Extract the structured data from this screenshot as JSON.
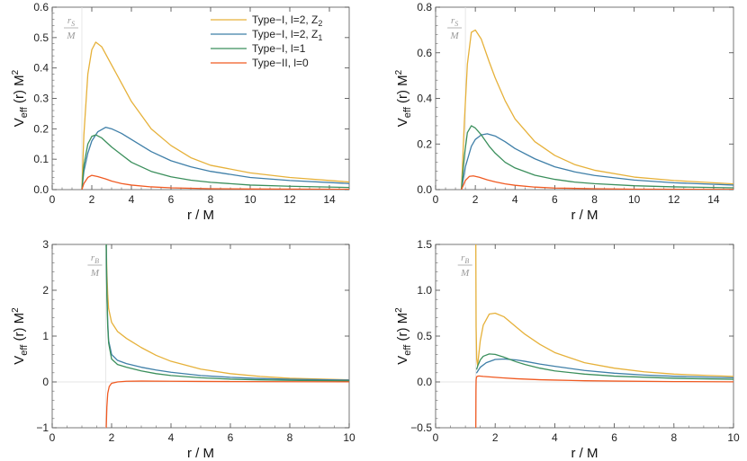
{
  "series_meta": [
    {
      "name": "Type−I, l=2, Z",
      "sub": "2",
      "color": "#e6b13a"
    },
    {
      "name": "Type−I, l=2, Z",
      "sub": "1",
      "color": "#3f7fa8"
    },
    {
      "name": "Type−I, l=1",
      "sub": "",
      "color": "#3b8f5c"
    },
    {
      "name": "Type−II, l=0",
      "sub": "",
      "color": "#f05a22"
    }
  ],
  "chart_data": [
    {
      "type": "line",
      "panel": "top-left",
      "xlabel": "r / M",
      "ylabel": {
        "main": "V",
        "sub": "eff",
        "rest": " (r) M",
        "sup": "2"
      },
      "xlim": [
        0,
        15
      ],
      "ylim": [
        0,
        0.6
      ],
      "xticks": [
        "0",
        "2",
        "4",
        "6",
        "8",
        "10",
        "12",
        "14"
      ],
      "xtick_values": [
        0,
        2,
        4,
        6,
        8,
        10,
        12,
        14
      ],
      "yticks": [
        "0.0",
        "0.1",
        "0.2",
        "0.3",
        "0.4",
        "0.5",
        "0.6"
      ],
      "ytick_values": [
        0,
        0.1,
        0.2,
        0.3,
        0.4,
        0.5,
        0.6
      ],
      "annotation": {
        "num": "r",
        "num_sub": "S",
        "den": "M",
        "x": 1.5
      },
      "legend": "top-right",
      "series": [
        {
          "name": "Type-I, l=2, Z2",
          "x": [
            1.5,
            1.6,
            1.8,
            2.0,
            2.2,
            2.5,
            3,
            3.5,
            4,
            5,
            6,
            7,
            8,
            10,
            12,
            15
          ],
          "y": [
            0,
            0.18,
            0.38,
            0.46,
            0.485,
            0.47,
            0.41,
            0.35,
            0.29,
            0.2,
            0.145,
            0.105,
            0.08,
            0.055,
            0.04,
            0.025
          ]
        },
        {
          "name": "Type-I, l=2, Z1",
          "x": [
            1.5,
            1.6,
            1.8,
            2.0,
            2.3,
            2.7,
            3,
            3.5,
            4,
            5,
            6,
            7,
            8,
            10,
            12,
            15
          ],
          "y": [
            0,
            0.06,
            0.12,
            0.16,
            0.19,
            0.205,
            0.2,
            0.185,
            0.165,
            0.125,
            0.095,
            0.075,
            0.06,
            0.04,
            0.03,
            0.02
          ]
        },
        {
          "name": "Type-I, l=1",
          "x": [
            1.5,
            1.6,
            1.8,
            2.0,
            2.2,
            2.5,
            3,
            3.5,
            4,
            5,
            6,
            7,
            8,
            10,
            12,
            15
          ],
          "y": [
            0,
            0.08,
            0.15,
            0.175,
            0.18,
            0.17,
            0.14,
            0.115,
            0.09,
            0.06,
            0.042,
            0.031,
            0.024,
            0.015,
            0.011,
            0.007
          ]
        },
        {
          "name": "Type-II, l=0",
          "x": [
            1.5,
            1.6,
            1.8,
            2.0,
            2.3,
            2.7,
            3,
            3.5,
            4,
            5,
            6,
            8,
            10,
            15
          ],
          "y": [
            0,
            0.02,
            0.04,
            0.047,
            0.043,
            0.035,
            0.028,
            0.02,
            0.015,
            0.009,
            0.006,
            0.003,
            0.002,
            0.001
          ]
        }
      ]
    },
    {
      "type": "line",
      "panel": "top-right",
      "xlabel": "r / M",
      "ylabel": {
        "main": "V",
        "sub": "eff",
        "rest": " (r) M",
        "sup": "2"
      },
      "xlim": [
        0,
        15
      ],
      "ylim": [
        0,
        0.8
      ],
      "xticks": [
        "0",
        "2",
        "4",
        "6",
        "8",
        "10",
        "12",
        "14"
      ],
      "xtick_values": [
        0,
        2,
        4,
        6,
        8,
        10,
        12,
        14
      ],
      "yticks": [
        "0.0",
        "0.2",
        "0.4",
        "0.6",
        "0.8"
      ],
      "ytick_values": [
        0,
        0.2,
        0.4,
        0.6,
        0.8
      ],
      "annotation": {
        "num": "r",
        "num_sub": "S",
        "den": "M",
        "x": 1.5
      },
      "series": [
        {
          "name": "Type-I, l=2, Z2",
          "x": [
            1.3,
            1.45,
            1.6,
            1.8,
            2.0,
            2.3,
            2.7,
            3,
            3.5,
            4,
            5,
            6,
            7,
            8,
            10,
            12,
            15
          ],
          "y": [
            0,
            0.3,
            0.55,
            0.69,
            0.7,
            0.66,
            0.56,
            0.49,
            0.39,
            0.31,
            0.21,
            0.15,
            0.11,
            0.085,
            0.055,
            0.04,
            0.025
          ]
        },
        {
          "name": "Type-I, l=2, Z1",
          "x": [
            1.3,
            1.5,
            1.8,
            2.0,
            2.3,
            2.6,
            3,
            3.5,
            4,
            5,
            6,
            7,
            8,
            10,
            12,
            15
          ],
          "y": [
            0,
            0.1,
            0.19,
            0.22,
            0.24,
            0.245,
            0.235,
            0.21,
            0.18,
            0.135,
            0.1,
            0.078,
            0.062,
            0.042,
            0.03,
            0.02
          ]
        },
        {
          "name": "Type-I, l=1",
          "x": [
            1.3,
            1.45,
            1.6,
            1.8,
            2.0,
            2.3,
            2.7,
            3,
            3.5,
            4,
            5,
            6,
            7,
            8,
            10,
            12,
            15
          ],
          "y": [
            0,
            0.15,
            0.25,
            0.28,
            0.27,
            0.24,
            0.19,
            0.16,
            0.12,
            0.095,
            0.063,
            0.045,
            0.033,
            0.026,
            0.017,
            0.012,
            0.008
          ]
        },
        {
          "name": "Type-II, l=0",
          "x": [
            1.3,
            1.5,
            1.7,
            1.9,
            2.2,
            2.6,
            3,
            3.5,
            4,
            5,
            6,
            8,
            10,
            15
          ],
          "y": [
            0,
            0.04,
            0.058,
            0.06,
            0.054,
            0.043,
            0.034,
            0.025,
            0.019,
            0.011,
            0.007,
            0.004,
            0.002,
            0.001
          ]
        }
      ]
    },
    {
      "type": "line",
      "panel": "bottom-left",
      "xlabel": "r / M",
      "ylabel": {
        "main": "V",
        "sub": "eff",
        "rest": " (r) M",
        "sup": "2"
      },
      "xlim": [
        0,
        10
      ],
      "ylim": [
        -1,
        3
      ],
      "xticks": [
        "0",
        "2",
        "4",
        "6",
        "8",
        "10"
      ],
      "xtick_values": [
        0,
        2,
        4,
        6,
        8,
        10
      ],
      "yticks": [
        "−1",
        "0",
        "1",
        "2",
        "3"
      ],
      "ytick_values": [
        -1,
        0,
        1,
        2,
        3
      ],
      "annotation": {
        "num": "r",
        "num_sub": "B",
        "den": "M",
        "x": 1.8
      },
      "series": [
        {
          "name": "Type-I, l=2, Z2",
          "x": [
            1.82,
            1.84,
            1.87,
            1.9,
            2.0,
            2.2,
            2.5,
            3,
            3.5,
            4,
            5,
            6,
            7,
            8,
            10
          ],
          "y": [
            3,
            2.4,
            1.9,
            1.6,
            1.3,
            1.1,
            0.95,
            0.75,
            0.58,
            0.45,
            0.28,
            0.18,
            0.12,
            0.08,
            0.045
          ]
        },
        {
          "name": "Type-I, l=2, Z1",
          "x": [
            1.82,
            1.84,
            1.87,
            1.9,
            2.0,
            2.2,
            2.5,
            3,
            3.5,
            4,
            5,
            6,
            7,
            8,
            10
          ],
          "y": [
            3,
            2.0,
            1.3,
            0.9,
            0.6,
            0.47,
            0.4,
            0.32,
            0.26,
            0.21,
            0.14,
            0.1,
            0.075,
            0.058,
            0.04
          ]
        },
        {
          "name": "Type-I, l=1",
          "x": [
            1.82,
            1.84,
            1.87,
            1.9,
            2.0,
            2.2,
            2.5,
            3,
            3.5,
            4,
            5,
            6,
            7,
            8,
            10
          ],
          "y": [
            3,
            1.9,
            1.2,
            0.85,
            0.5,
            0.38,
            0.32,
            0.24,
            0.18,
            0.14,
            0.09,
            0.06,
            0.045,
            0.035,
            0.022
          ]
        },
        {
          "name": "Type-II, l=0",
          "x": [
            1.82,
            1.84,
            1.87,
            1.92,
            2.0,
            2.2,
            2.5,
            3,
            4,
            5,
            6,
            8,
            10
          ],
          "y": [
            -1,
            -0.55,
            -0.25,
            -0.1,
            -0.03,
            0.0,
            0.015,
            0.018,
            0.015,
            0.011,
            0.008,
            0.005,
            0.003
          ]
        }
      ]
    },
    {
      "type": "line",
      "panel": "bottom-right",
      "xlabel": "r / M",
      "ylabel": {
        "main": "V",
        "sub": "eff",
        "rest": " (r) M",
        "sup": "2"
      },
      "xlim": [
        0,
        10
      ],
      "ylim": [
        -0.5,
        1.5
      ],
      "xticks": [
        "0",
        "2",
        "4",
        "6",
        "8",
        "10"
      ],
      "xtick_values": [
        0,
        2,
        4,
        6,
        8,
        10
      ],
      "yticks": [
        "−0.5",
        "0.0",
        "0.5",
        "1.0",
        "1.5"
      ],
      "ytick_values": [
        -0.5,
        0,
        0.5,
        1,
        1.5
      ],
      "annotation": {
        "num": "r",
        "num_sub": "B",
        "den": "M",
        "x": 1.35
      },
      "series": [
        {
          "name": "Type-I, l=2, Z2",
          "x": [
            1.35,
            1.36,
            1.38,
            1.41,
            1.45,
            1.5,
            1.6,
            1.8,
            2.0,
            2.3,
            2.7,
            3,
            3.5,
            4,
            5,
            6,
            7,
            8,
            10
          ],
          "y": [
            1.5,
            0.6,
            0.25,
            0.18,
            0.3,
            0.45,
            0.62,
            0.74,
            0.75,
            0.71,
            0.6,
            0.52,
            0.41,
            0.32,
            0.21,
            0.15,
            0.11,
            0.085,
            0.06
          ]
        },
        {
          "name": "Type-I, l=2, Z1",
          "x": [
            1.38,
            1.42,
            1.5,
            1.7,
            2.0,
            2.3,
            2.7,
            3,
            3.5,
            4,
            5,
            6,
            7,
            8,
            10
          ],
          "y": [
            0.1,
            0.12,
            0.16,
            0.21,
            0.245,
            0.25,
            0.24,
            0.225,
            0.195,
            0.17,
            0.125,
            0.095,
            0.075,
            0.062,
            0.045
          ]
        },
        {
          "name": "Type-I, l=1",
          "x": [
            1.38,
            1.42,
            1.5,
            1.6,
            1.8,
            2.0,
            2.3,
            2.7,
            3,
            3.5,
            4,
            5,
            6,
            8,
            10
          ],
          "y": [
            0.14,
            0.18,
            0.24,
            0.28,
            0.305,
            0.3,
            0.27,
            0.22,
            0.19,
            0.15,
            0.12,
            0.085,
            0.063,
            0.04,
            0.028
          ]
        },
        {
          "name": "Type-II, l=0",
          "x": [
            1.35,
            1.355,
            1.36,
            1.37,
            1.39,
            1.45,
            1.6,
            1.8,
            2.2,
            2.7,
            3.5,
            4,
            5,
            6,
            8,
            10
          ],
          "y": [
            -0.5,
            -0.1,
            0.02,
            0.05,
            0.06,
            0.065,
            0.06,
            0.055,
            0.045,
            0.035,
            0.024,
            0.02,
            0.013,
            0.009,
            0.004,
            0.001
          ]
        }
      ]
    }
  ]
}
